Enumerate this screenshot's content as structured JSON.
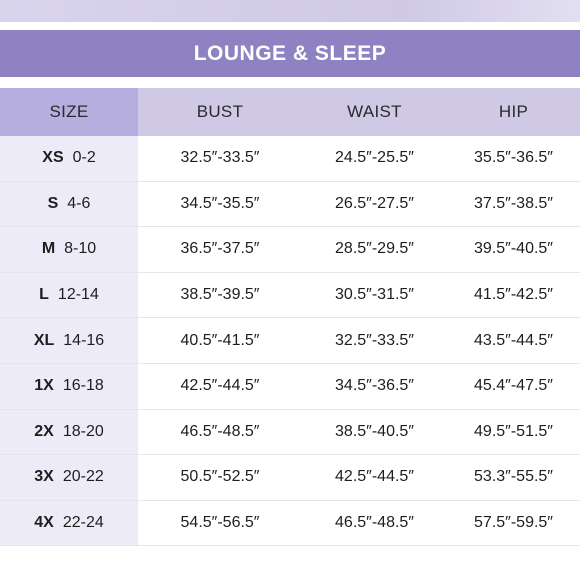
{
  "title": "LOUNGE & SLEEP",
  "columns": [
    "SIZE",
    "BUST",
    "WAIST",
    "HIP"
  ],
  "rows": [
    {
      "code": "XS",
      "range": "0-2",
      "bust": "32.5″-33.5″",
      "waist": "24.5″-25.5″",
      "hip": "35.5″-36.5″"
    },
    {
      "code": "S",
      "range": "4-6",
      "bust": "34.5″-35.5″",
      "waist": "26.5″-27.5″",
      "hip": "37.5″-38.5″"
    },
    {
      "code": "M",
      "range": "8-10",
      "bust": "36.5″-37.5″",
      "waist": "28.5″-29.5″",
      "hip": "39.5″-40.5″"
    },
    {
      "code": "L",
      "range": "12-14",
      "bust": "38.5″-39.5″",
      "waist": "30.5″-31.5″",
      "hip": "41.5″-42.5″"
    },
    {
      "code": "XL",
      "range": "14-16",
      "bust": "40.5″-41.5″",
      "waist": "32.5″-33.5″",
      "hip": "43.5″-44.5″"
    },
    {
      "code": "1X",
      "range": "16-18",
      "bust": "42.5″-44.5″",
      "waist": "34.5″-36.5″",
      "hip": "45.4″-47.5″"
    },
    {
      "code": "2X",
      "range": "18-20",
      "bust": "46.5″-48.5″",
      "waist": "38.5″-40.5″",
      "hip": "49.5″-51.5″"
    },
    {
      "code": "3X",
      "range": "20-22",
      "bust": "50.5″-52.5″",
      "waist": "42.5″-44.5″",
      "hip": "53.3″-55.5″"
    },
    {
      "code": "4X",
      "range": "22-24",
      "bust": "54.5″-56.5″",
      "waist": "46.5″-48.5″",
      "hip": "57.5″-59.5″"
    }
  ],
  "colors": {
    "banner": "#8f82c2",
    "header_row": "#cfc9e6",
    "size_header": "#b6aede",
    "size_column": "#ecebf7"
  }
}
